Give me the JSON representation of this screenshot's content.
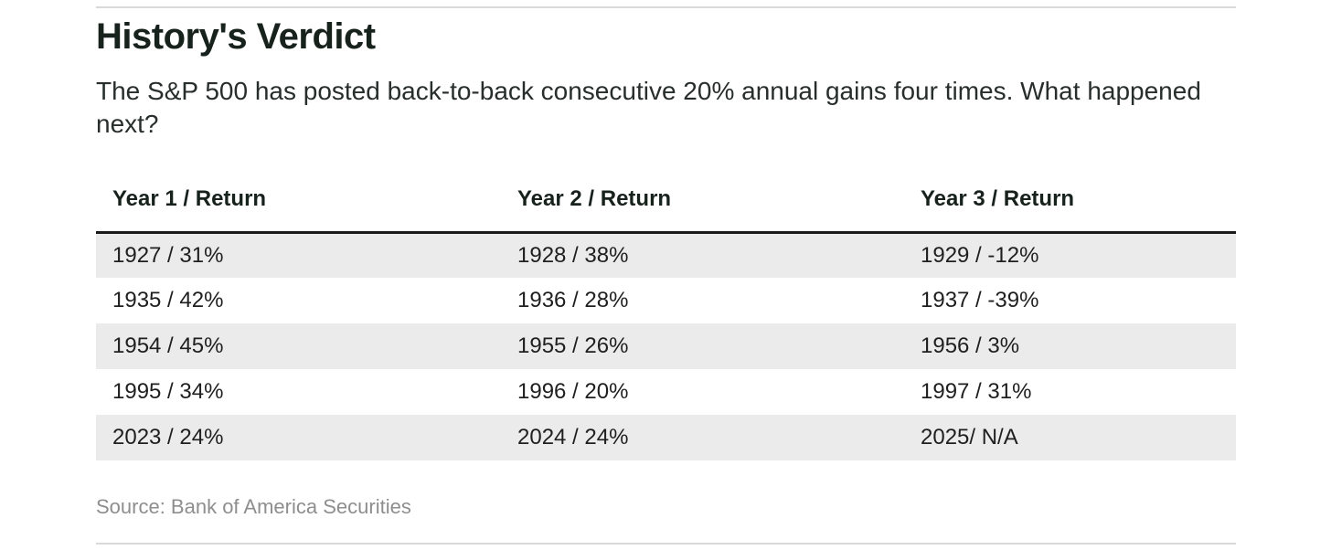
{
  "page": {
    "title": "History's Verdict",
    "subtitle": "The S&P 500 has posted back-to-back consecutive 20% annual gains four times. What happened next?",
    "source": "Source: Bank of America Securities"
  },
  "colors": {
    "title_text": "#18221d",
    "body_text": "#272e2b",
    "cell_text": "#1f1f1f",
    "stripe_background": "#ebebeb",
    "header_border": "#1a1a1a",
    "divider": "#d9d9d9",
    "source_text": "#8e8e8e"
  },
  "chart_data": {
    "type": "table",
    "title": "History's Verdict",
    "subtitle": "The S&P 500 has posted back-to-back consecutive 20% annual gains four times. What happened next?",
    "source": "Source: Bank of America Securities",
    "columns": [
      "Year 1 / Return",
      "Year 2 / Return",
      "Year 3 / Return"
    ],
    "rows": [
      [
        "1927 / 31%",
        "1928 / 38%",
        "1929 / -12%"
      ],
      [
        "1935 / 42%",
        "1936 / 28%",
        "1937 / -39%"
      ],
      [
        "1954 / 45%",
        "1955 / 26%",
        "1956 / 3%"
      ],
      [
        "1995 / 34%",
        "1996 / 20%",
        "1997 / 31%"
      ],
      [
        "2023 / 24%",
        "2024 / 24%",
        "2025/ N/A"
      ]
    ],
    "records": [
      {
        "year1": 1927,
        "return1_pct": 31,
        "year2": 1928,
        "return2_pct": 38,
        "year3": 1929,
        "return3_pct": -12
      },
      {
        "year1": 1935,
        "return1_pct": 42,
        "year2": 1936,
        "return2_pct": 28,
        "year3": 1937,
        "return3_pct": -39
      },
      {
        "year1": 1954,
        "return1_pct": 45,
        "year2": 1955,
        "return2_pct": 26,
        "year3": 1956,
        "return3_pct": 3
      },
      {
        "year1": 1995,
        "return1_pct": 34,
        "year2": 1996,
        "return2_pct": 20,
        "year3": 1997,
        "return3_pct": 31
      },
      {
        "year1": 2023,
        "return1_pct": 24,
        "year2": 2024,
        "return2_pct": 24,
        "year3": 2025,
        "return3_pct": null
      }
    ],
    "layout": {
      "striped_rows": "odd",
      "legend": "none",
      "grid": "off"
    }
  }
}
